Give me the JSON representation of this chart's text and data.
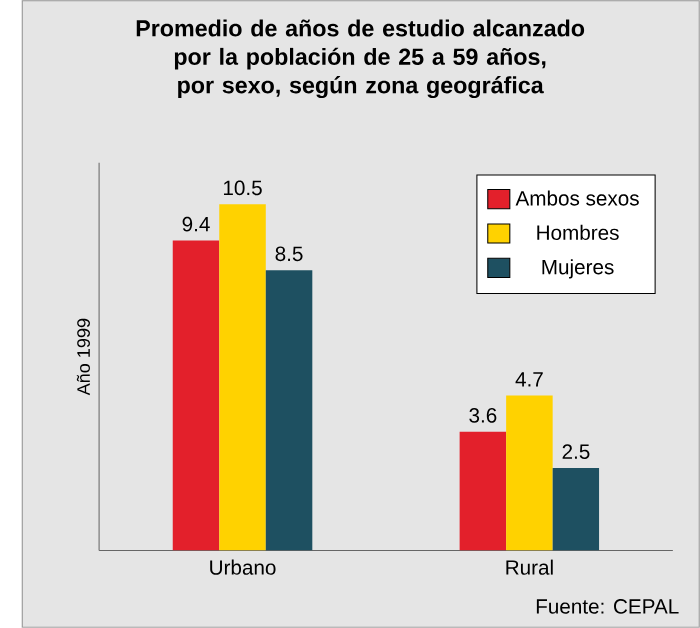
{
  "chart_data": {
    "type": "bar",
    "title": "Promedio de años de estudio alcanzado por la población de 25 a 59 años, por sexo, según zona geográfica",
    "ylabel": "Año 1999",
    "categories": [
      "Urbano",
      "Rural"
    ],
    "series": [
      {
        "name": "Ambos sexos",
        "color": "#e3202b",
        "values": [
          9.4,
          3.6
        ]
      },
      {
        "name": "Hombres",
        "color": "#ffd200",
        "values": [
          10.5,
          4.7
        ]
      },
      {
        "name": "Mujeres",
        "color": "#1e5061",
        "values": [
          8.5,
          2.5
        ]
      }
    ],
    "data_labels": true,
    "legend": "top right",
    "annotations": [
      "Fuente: CEPAL"
    ]
  }
}
